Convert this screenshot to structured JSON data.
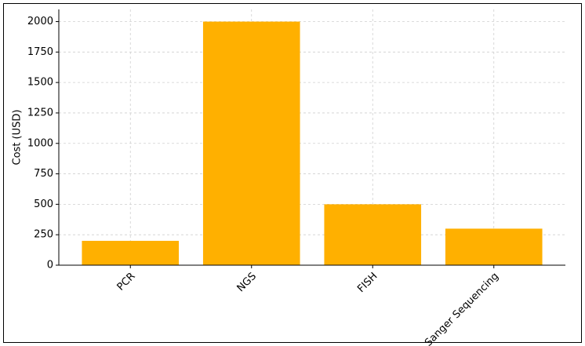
{
  "chart_data": {
    "type": "bar",
    "ylabel": "Cost (USD)",
    "categories": [
      "PCR",
      "NGS",
      "FISH",
      "Sanger Sequencing"
    ],
    "values": [
      200,
      2000,
      500,
      300
    ],
    "color": "#ffb000",
    "ylim": [
      0,
      2100
    ],
    "yticks": [
      0,
      250,
      500,
      750,
      1000,
      1250,
      1500,
      1750,
      2000
    ],
    "grid": true
  }
}
